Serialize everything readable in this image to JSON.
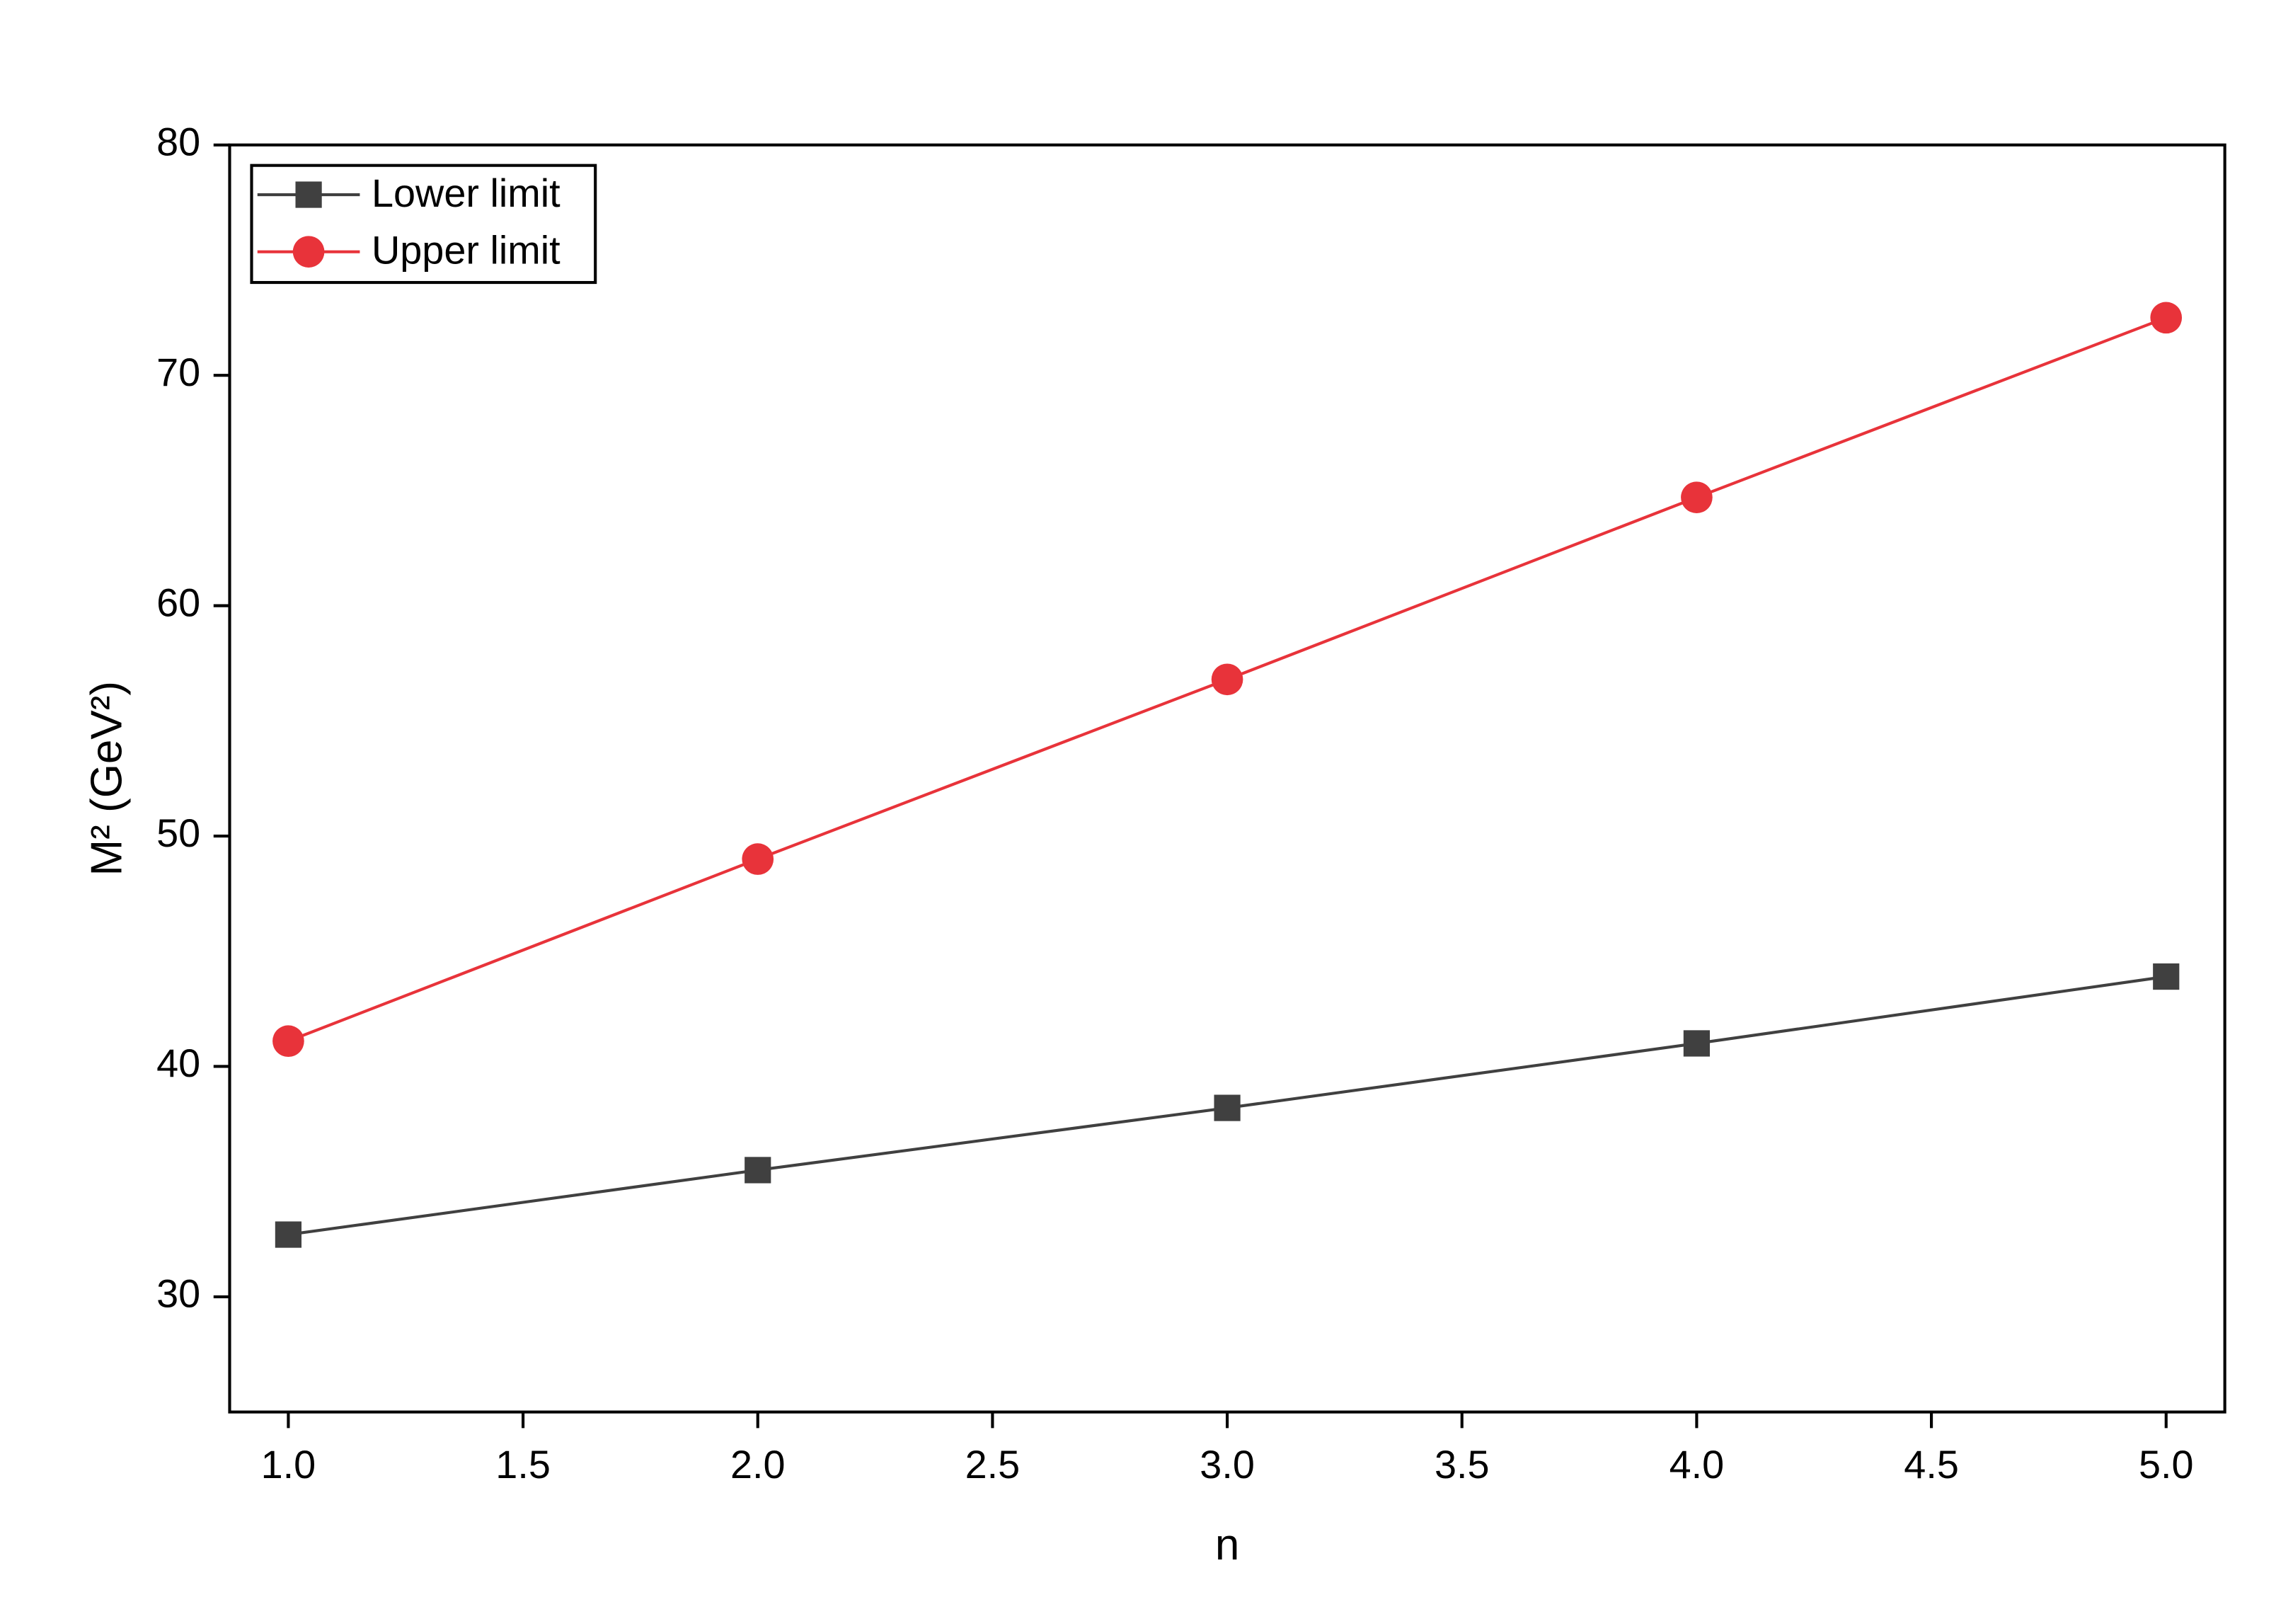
{
  "chart_data": {
    "type": "line",
    "x_label": "n",
    "y_label": "M² (GeV²)",
    "x": [
      1,
      2,
      3,
      4,
      5
    ],
    "series": [
      {
        "name": "Lower limit",
        "color": "#404040",
        "marker": "square",
        "values": [
          32.7,
          35.5,
          38.2,
          41.0,
          43.9
        ]
      },
      {
        "name": "Upper limit",
        "color": "#e8333a",
        "marker": "circle",
        "values": [
          41.1,
          49.0,
          56.8,
          64.7,
          72.5
        ]
      }
    ],
    "xlim": [
      0.875,
      5.125
    ],
    "xticks": [
      {
        "value": 1,
        "label": "1.0"
      },
      1.5,
      {
        "value": 2,
        "label": "2.0"
      },
      2.5,
      {
        "value": 3,
        "label": "3.0"
      },
      3.5,
      {
        "value": 4,
        "label": "4.0"
      },
      4.5,
      {
        "value": 5,
        "label": "5.0"
      }
    ],
    "ylim": [
      25,
      80
    ],
    "yticks": [
      30,
      40,
      50,
      60,
      70,
      80
    ],
    "legend": "top-left",
    "grid": false
  }
}
